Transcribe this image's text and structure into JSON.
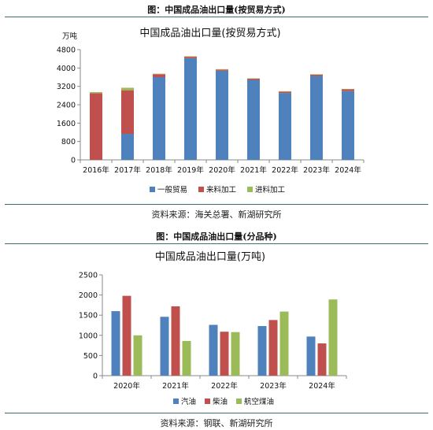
{
  "panel1": {
    "header": "图：中国成品油出口量(按贸易方式)",
    "source": "资料来源：海关总署、新湖研究所"
  },
  "panel2": {
    "header": "图：中国成品油出口量(分品种)",
    "source": "资料来源：钢联、新湖研究所"
  },
  "colors": {
    "blue": "#4f81bd",
    "red": "#c0504d",
    "green": "#9bbb59"
  },
  "chart_data": [
    {
      "type": "bar",
      "stacked": true,
      "title": "中国成品油出口量(按贸易方式)",
      "ylabel": "万吨",
      "categories": [
        "2016年",
        "2017年",
        "2018年",
        "2019年",
        "2020年",
        "2021年",
        "2022年",
        "2023年",
        "2024年"
      ],
      "series": [
        {
          "name": "一般贸易",
          "color": "#4f81bd",
          "values": [
            0,
            1130,
            3600,
            4430,
            3880,
            3480,
            2910,
            3650,
            2990
          ]
        },
        {
          "name": "来料加工",
          "color": "#c0504d",
          "values": [
            2900,
            1900,
            130,
            60,
            50,
            50,
            60,
            60,
            80
          ]
        },
        {
          "name": "进料加工",
          "color": "#9bbb59",
          "values": [
            50,
            110,
            20,
            20,
            20,
            20,
            20,
            20,
            20
          ]
        }
      ],
      "ylim": [
        0,
        4800
      ],
      "yticks": [
        0,
        800,
        1600,
        2400,
        3200,
        4000,
        4800
      ],
      "grid": false,
      "legend": "bottom"
    },
    {
      "type": "bar",
      "stacked": false,
      "title": "中国成品油出口量(万吨)",
      "categories": [
        "2020年",
        "2021年",
        "2022年",
        "2023年",
        "2024年"
      ],
      "series": [
        {
          "name": "汽油",
          "color": "#4f81bd",
          "values": [
            1600,
            1460,
            1260,
            1230,
            970
          ]
        },
        {
          "name": "柴油",
          "color": "#c0504d",
          "values": [
            1980,
            1720,
            1090,
            1380,
            800
          ]
        },
        {
          "name": "航空煤油",
          "color": "#9bbb59",
          "values": [
            1000,
            860,
            1080,
            1590,
            1890
          ]
        }
      ],
      "ylim": [
        0,
        2500
      ],
      "yticks": [
        0,
        500,
        1000,
        1500,
        2000,
        2500
      ],
      "grid": false,
      "legend": "bottom"
    }
  ]
}
